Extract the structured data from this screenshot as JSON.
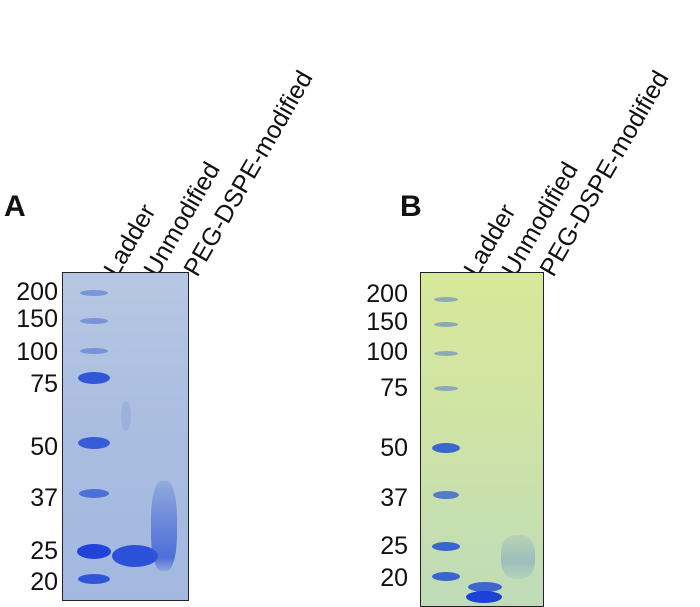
{
  "panels": [
    {
      "label": "A",
      "lanes": [
        "Ladder",
        "Unmodified",
        "PEG-DSPE-modified"
      ],
      "markers": [
        "200",
        "150",
        "100",
        "75",
        "50",
        "37",
        "25",
        "20"
      ],
      "gel_color": "#a9bde0",
      "band_color": "#2a4fd0"
    },
    {
      "label": "B",
      "lanes": [
        "Ladder",
        "Unmodified",
        "PEG-DSPE-modified"
      ],
      "markers": [
        "200",
        "150",
        "100",
        "75",
        "50",
        "37",
        "25",
        "20"
      ],
      "gel_color": "#cfe3a5",
      "band_color": "#2a4fd0"
    }
  ]
}
